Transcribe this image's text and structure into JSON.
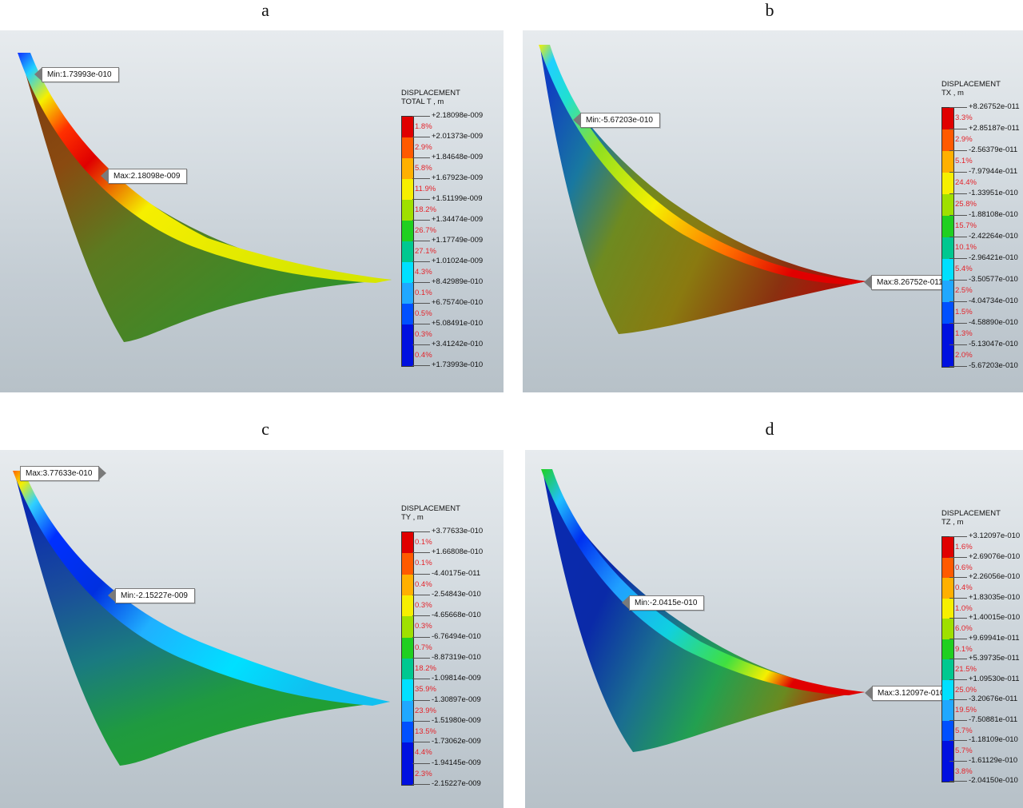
{
  "colors": [
    "#e00000",
    "#ff5a00",
    "#ffb000",
    "#f6ef00",
    "#9fe000",
    "#20d020",
    "#00c890",
    "#00e0ff",
    "#20a8ff",
    "#0050ff",
    "#0010e0"
  ],
  "panels": [
    {
      "letter": "a",
      "legend_title": [
        "DISPLACEMENT",
        "TOTAL T , m"
      ],
      "values": [
        "+2.18098e-009",
        "+2.01373e-009",
        "+1.84648e-009",
        "+1.67923e-009",
        "+1.51199e-009",
        "+1.34474e-009",
        "+1.17749e-009",
        "+1.01024e-009",
        "+8.42989e-010",
        "+6.75740e-010",
        "+5.08491e-010",
        "+3.41242e-010",
        "+1.73993e-010"
      ],
      "percents": [
        "1.8%",
        "2.9%",
        "5.8%",
        "11.9%",
        "18.2%",
        "26.7%",
        "27.1%",
        "4.3%",
        "0.1%",
        "0.5%",
        "0.3%",
        "0.4%"
      ],
      "callouts": [
        {
          "label": "Min:1.73993e-010",
          "icon": "min-marker"
        },
        {
          "label": "Max:2.18098e-009",
          "icon": "max-marker"
        }
      ]
    },
    {
      "letter": "b",
      "legend_title": [
        "DISPLACEMENT",
        "TX , m"
      ],
      "values": [
        "+8.26752e-011",
        "+2.85187e-011",
        "-2.56379e-011",
        "-7.97944e-011",
        "-1.33951e-010",
        "-1.88108e-010",
        "-2.42264e-010",
        "-2.96421e-010",
        "-3.50577e-010",
        "-4.04734e-010",
        "-4.58890e-010",
        "-5.13047e-010",
        "-5.67203e-010"
      ],
      "percents": [
        "3.3%",
        "2.9%",
        "5.1%",
        "24.4%",
        "25.8%",
        "15.7%",
        "10.1%",
        "5.4%",
        "2.5%",
        "1.5%",
        "1.3%",
        "2.0%"
      ],
      "callouts": [
        {
          "label": "Min:-5.67203e-010",
          "icon": "min-marker"
        },
        {
          "label": "Max:8.26752e-011",
          "icon": "max-marker"
        }
      ]
    },
    {
      "letter": "c",
      "legend_title": [
        "DISPLACEMENT",
        "TY , m"
      ],
      "values": [
        "+3.77633e-010",
        "+1.66808e-010",
        "-4.40175e-011",
        "-2.54843e-010",
        "-4.65668e-010",
        "-6.76494e-010",
        "-8.87319e-010",
        "-1.09814e-009",
        "-1.30897e-009",
        "-1.51980e-009",
        "-1.73062e-009",
        "-1.94145e-009",
        "-2.15227e-009"
      ],
      "percents": [
        "0.1%",
        "0.1%",
        "0.4%",
        "0.3%",
        "0.3%",
        "0.7%",
        "18.2%",
        "35.9%",
        "23.9%",
        "13.5%",
        "4.4%",
        "2.3%"
      ],
      "callouts": [
        {
          "label": "Max:3.77633e-010",
          "icon": "max-marker"
        },
        {
          "label": "Min:-2.15227e-009",
          "icon": "min-marker"
        }
      ]
    },
    {
      "letter": "d",
      "legend_title": [
        "DISPLACEMENT",
        "TZ , m"
      ],
      "values": [
        "+3.12097e-010",
        "+2.69076e-010",
        "+2.26056e-010",
        "+1.83035e-010",
        "+1.40015e-010",
        "+9.69941e-011",
        "+5.39735e-011",
        "+1.09530e-011",
        "-3.20676e-011",
        "-7.50881e-011",
        "-1.18109e-010",
        "-1.61129e-010",
        "-2.04150e-010"
      ],
      "percents": [
        "1.6%",
        "0.6%",
        "0.4%",
        "1.0%",
        "6.0%",
        "9.1%",
        "21.5%",
        "25.0%",
        "19.5%",
        "5.7%",
        "5.7%",
        "3.8%"
      ],
      "callouts": [
        {
          "label": "Min:-2.0415e-010",
          "icon": "min-marker"
        },
        {
          "label": "Max:3.12097e-010",
          "icon": "max-marker"
        }
      ]
    }
  ]
}
